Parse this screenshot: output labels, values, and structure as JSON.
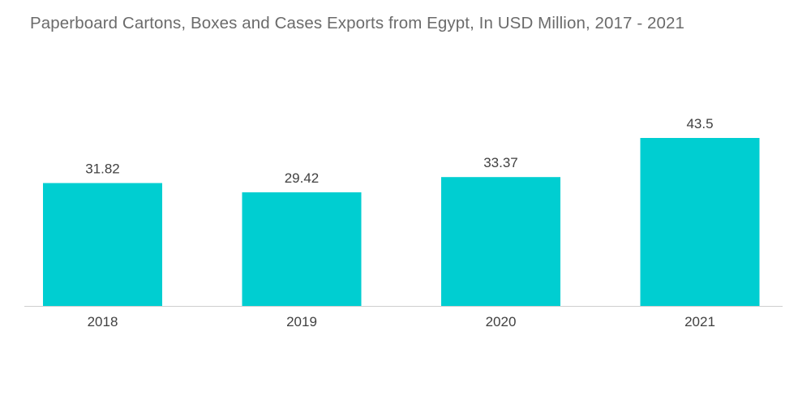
{
  "chart_data": {
    "type": "bar",
    "title": "Paperboard Cartons, Boxes and Cases Exports from Egypt, In USD Million, 2017 - 2021",
    "categories": [
      "2018",
      "2019",
      "2020",
      "2021"
    ],
    "values": [
      31.82,
      29.42,
      33.37,
      43.5
    ],
    "value_labels": [
      "31.82",
      "29.42",
      "33.37",
      "43.5"
    ],
    "xlabel": "",
    "ylabel": "",
    "ylim": [
      0,
      43.5
    ],
    "grid": false,
    "legend": "none",
    "bar_color": "#00ced1",
    "axis_color": "#cfcfcf"
  }
}
